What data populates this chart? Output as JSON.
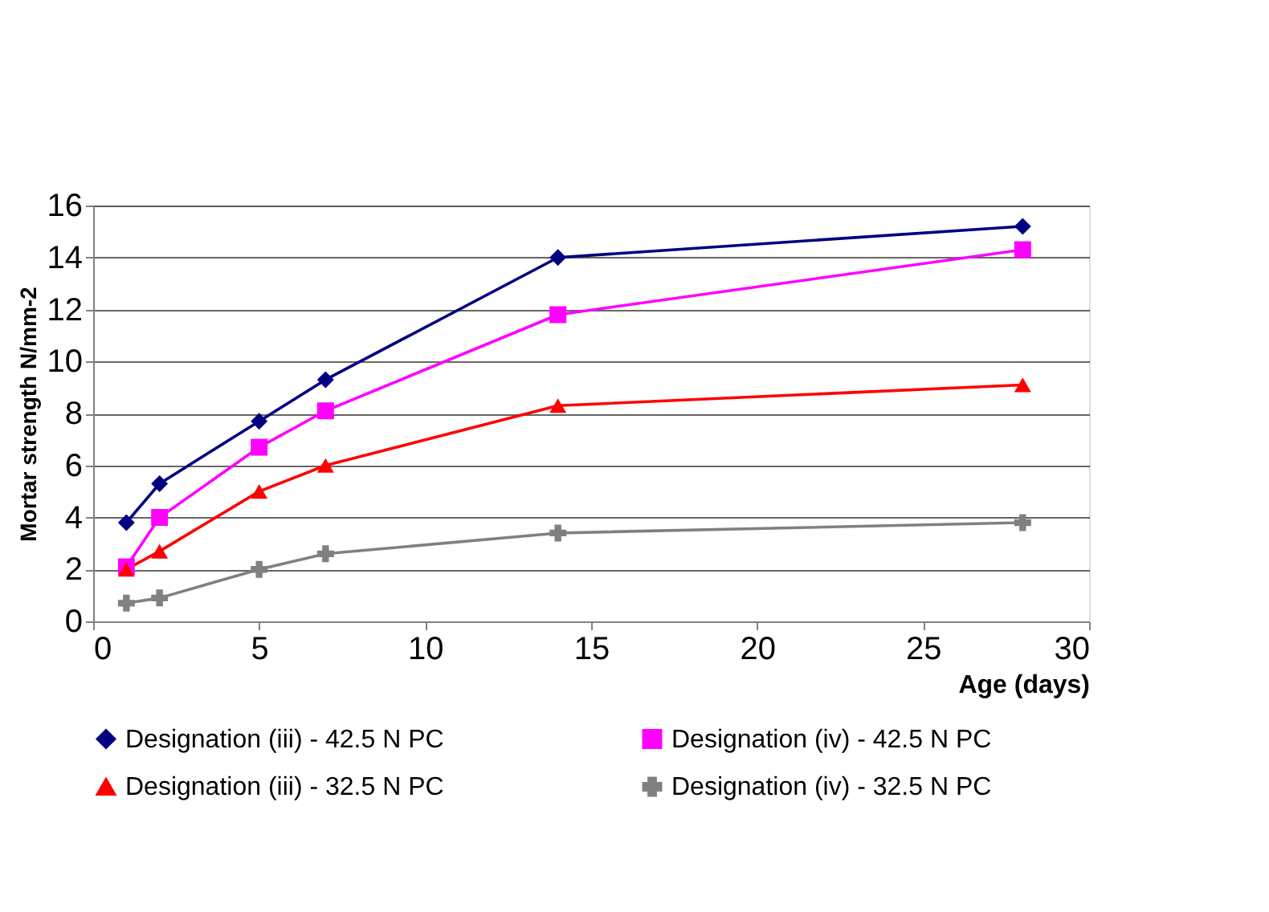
{
  "chart_data": {
    "type": "line",
    "xlabel": "Age (days)",
    "ylabel": "Mortar strength N/mm-2",
    "x": [
      1,
      2,
      5,
      7,
      14,
      28
    ],
    "series": [
      {
        "name": "Designation (iii) - 42.5 N PC",
        "color": "#000080",
        "marker": "diamond",
        "values": [
          3.8,
          5.3,
          7.7,
          9.3,
          14.0,
          15.2
        ]
      },
      {
        "name": "Designation (iv) - 42.5 N PC",
        "color": "#ff00ff",
        "marker": "square",
        "values": [
          2.1,
          4.0,
          6.7,
          8.1,
          11.8,
          14.3
        ]
      },
      {
        "name": "Designation (iii) - 32.5 N PC",
        "color": "#ff0000",
        "marker": "triangle",
        "values": [
          2.0,
          2.7,
          5.0,
          6.0,
          8.3,
          9.1
        ]
      },
      {
        "name": "Designation (iv) - 32.5 N PC",
        "color": "#808080",
        "marker": "cross",
        "values": [
          0.7,
          0.9,
          2.0,
          2.6,
          3.4,
          3.8
        ]
      }
    ],
    "xlim": [
      0,
      30
    ],
    "xticks": [
      0,
      5,
      10,
      15,
      20,
      25,
      30
    ],
    "ylim": [
      0,
      16
    ],
    "yticks": [
      0,
      2,
      4,
      6,
      8,
      10,
      12,
      14,
      16
    ],
    "grid": "y",
    "legend": "bottom",
    "line_style": "solid"
  }
}
